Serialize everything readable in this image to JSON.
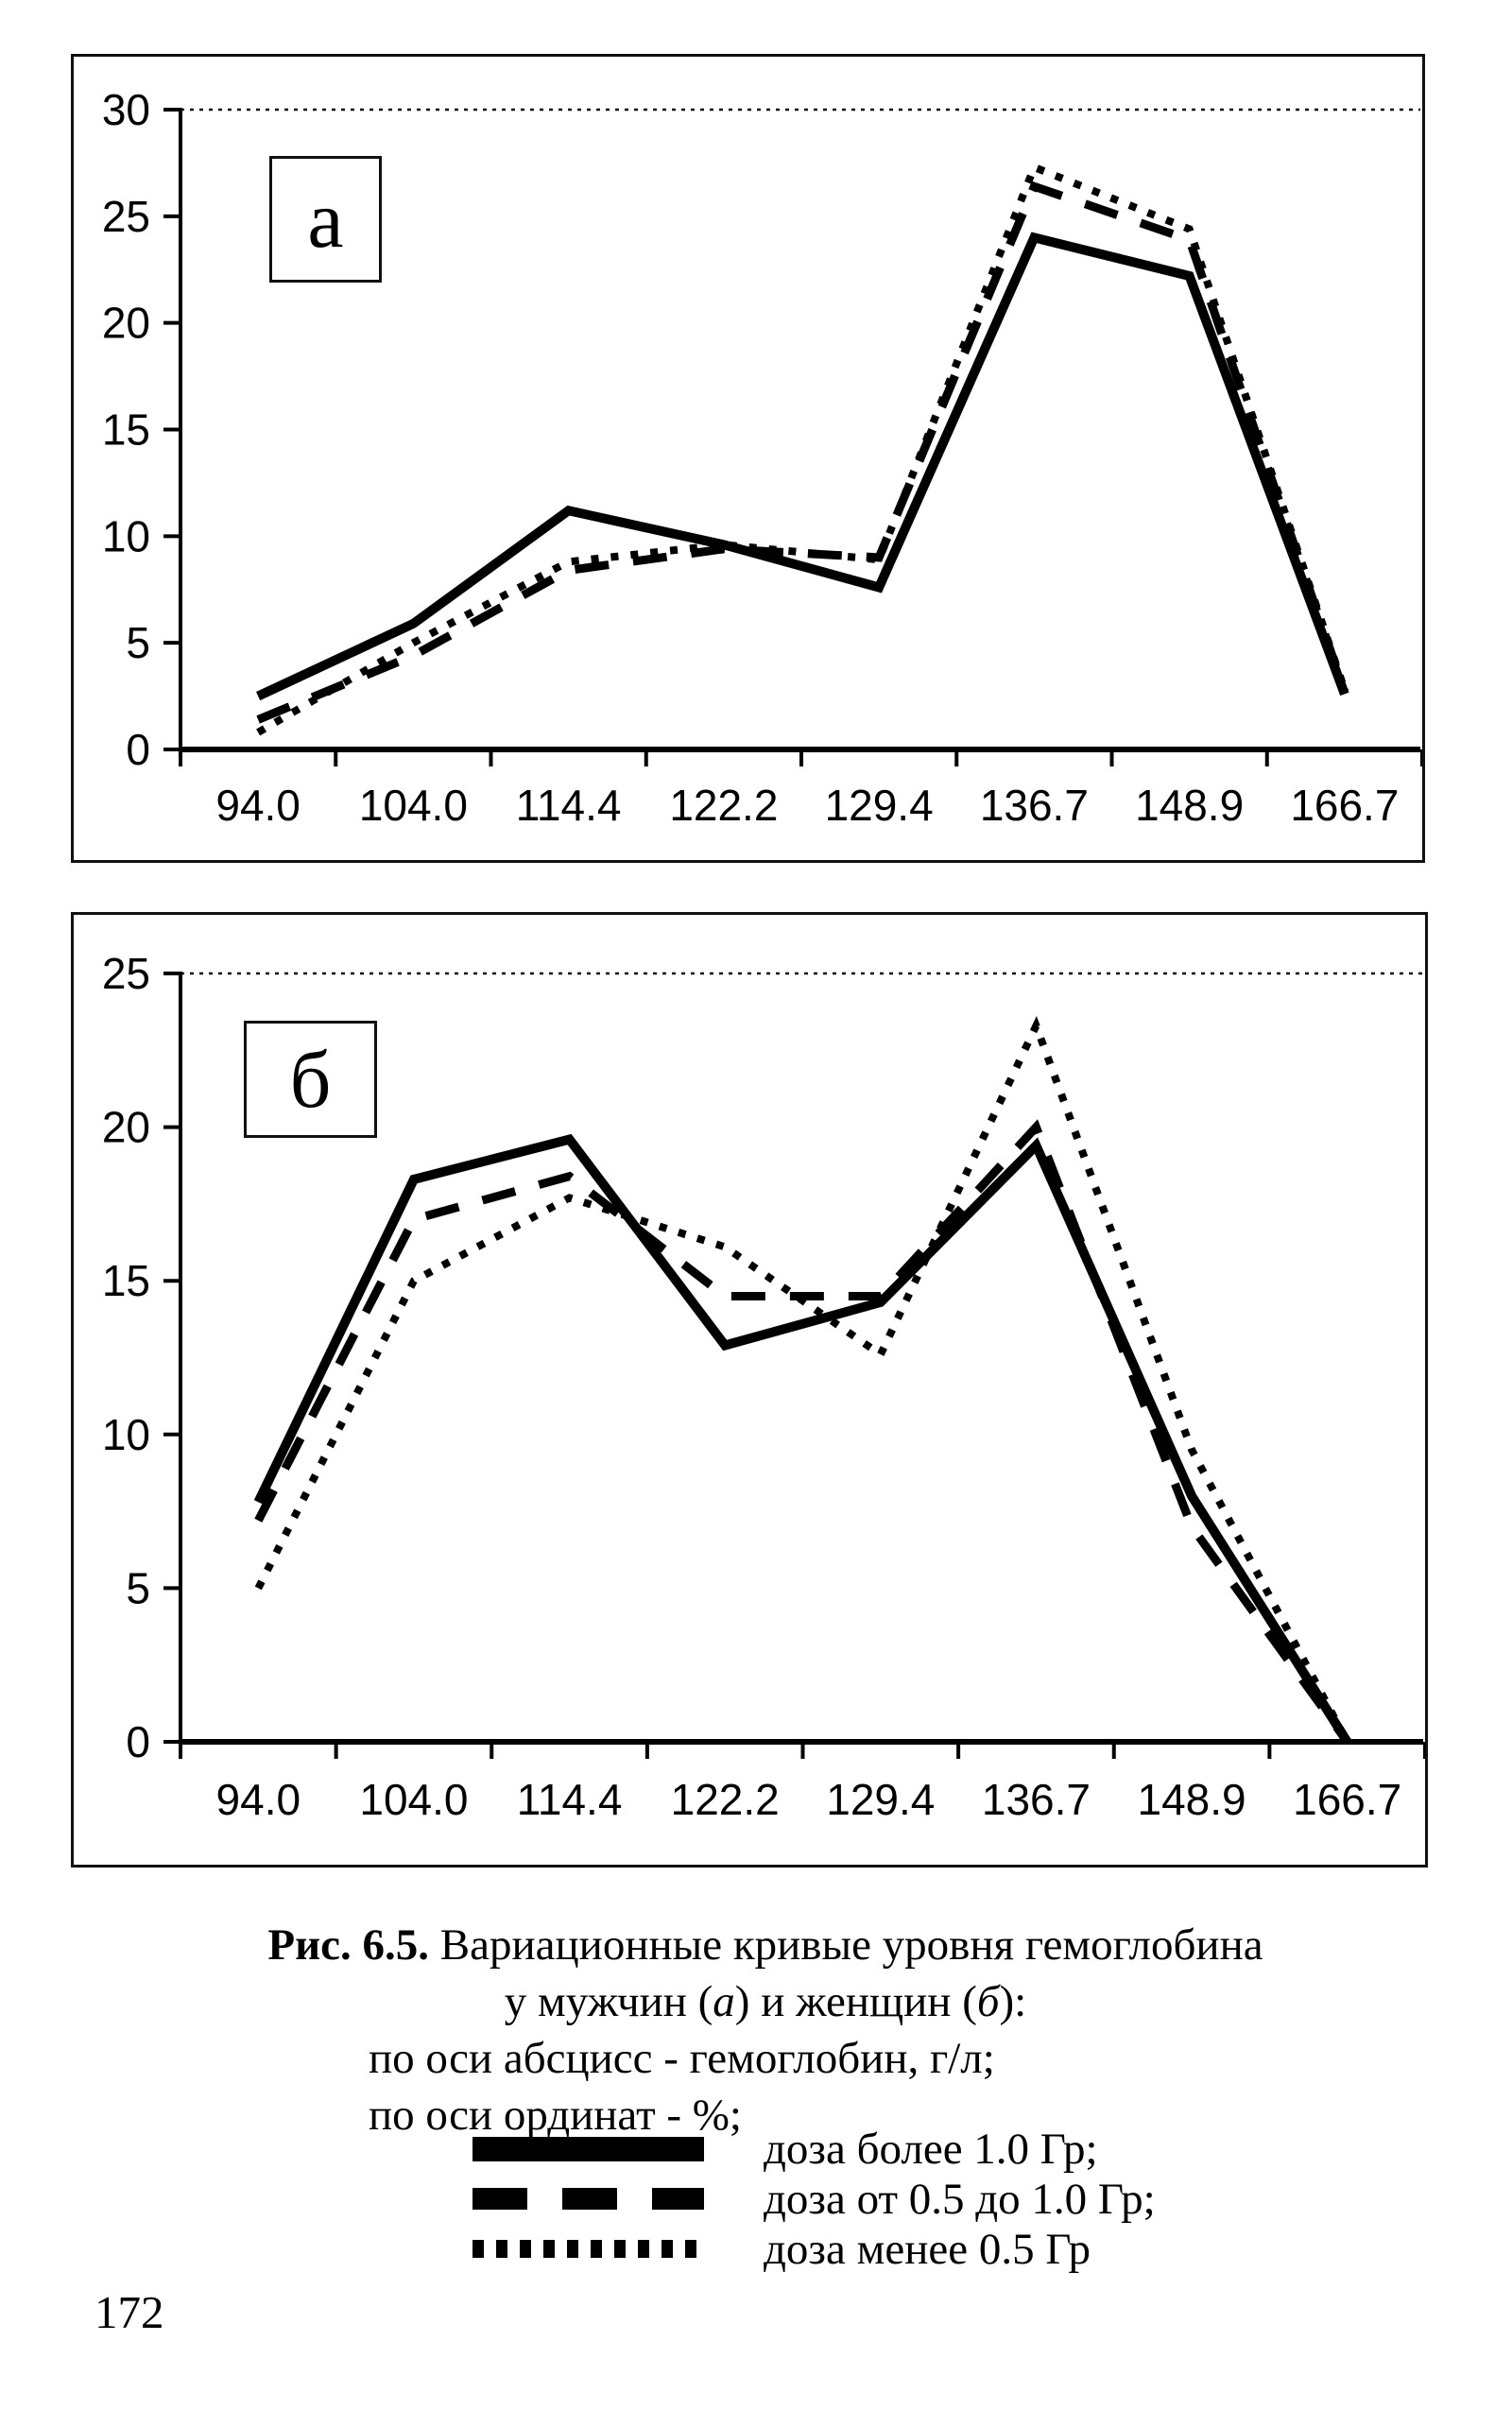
{
  "page_number": "172",
  "caption": {
    "fig_label": "Рис. 6.5.",
    "line1_rest": " Вариационные кривые уровня гемоглобина",
    "line2_a": "у мужчин (",
    "line2_b": "а",
    "line2_c": ") и женщин (",
    "line2_d": "б",
    "line2_e": "):",
    "line3": "по оси абсцисс - гемоглобин, г/л;",
    "line4": "по оси ординат - %;"
  },
  "legend": {
    "rows": [
      {
        "style": "solid",
        "label": "доза более 1.0 Гр;"
      },
      {
        "style": "dashed",
        "label": "доза от 0.5 до 1.0 Гр;"
      },
      {
        "style": "dotted",
        "label": "доза менее 0.5 Гр"
      }
    ]
  },
  "chart_data": [
    {
      "type": "line",
      "panel_label": "а",
      "title": "Вариационная кривая уровня гемоглобина у мужчин",
      "xlabel": "гемоглобин, г/л",
      "ylabel": "%",
      "categories": [
        "94.0",
        "104.0",
        "114.4",
        "122.2",
        "129.4",
        "136.7",
        "148.9",
        "166.7"
      ],
      "ylim": [
        0,
        30
      ],
      "yticks": [
        0,
        5,
        10,
        15,
        20,
        25,
        30
      ],
      "grid": "top-gridline-only",
      "legend_position": "below-figure",
      "series": [
        {
          "name": "доза более 1.0 Гр",
          "style": "solid",
          "values": [
            2.5,
            5.9,
            11.2,
            9.6,
            7.6,
            24.0,
            22.2,
            2.6
          ]
        },
        {
          "name": "доза от 0.5 до 1.0 Гр",
          "style": "dashed",
          "values": [
            1.4,
            4.4,
            8.4,
            9.4,
            9.0,
            26.4,
            23.9,
            2.7
          ]
        },
        {
          "name": "доза менее 0.5 Гр",
          "style": "dotted",
          "values": [
            0.8,
            5.0,
            8.8,
            9.6,
            8.9,
            27.3,
            24.4,
            2.8
          ]
        }
      ]
    },
    {
      "type": "line",
      "panel_label": "б",
      "title": "Вариационная кривая уровня гемоглобина у женщин",
      "xlabel": "гемоглобин, г/л",
      "ylabel": "%",
      "categories": [
        "94.0",
        "104.0",
        "114.4",
        "122.2",
        "129.4",
        "136.7",
        "148.9",
        "166.7"
      ],
      "ylim": [
        0,
        25
      ],
      "yticks": [
        0,
        5,
        10,
        15,
        20,
        25
      ],
      "grid": "top-gridline-only",
      "legend_position": "below-figure",
      "series": [
        {
          "name": "доза более 1.0 Гр",
          "style": "solid",
          "values": [
            7.8,
            18.3,
            19.6,
            12.9,
            14.3,
            19.4,
            8.0,
            0.0
          ]
        },
        {
          "name": "доза от 0.5 до 1.0 Гр",
          "style": "dashed",
          "values": [
            7.2,
            17.0,
            18.4,
            14.5,
            14.5,
            20.0,
            7.0,
            0.0
          ]
        },
        {
          "name": "доза менее 0.5 Гр",
          "style": "dotted",
          "values": [
            5.0,
            15.0,
            17.7,
            16.1,
            12.6,
            23.3,
            9.5,
            0.0
          ]
        }
      ]
    }
  ]
}
